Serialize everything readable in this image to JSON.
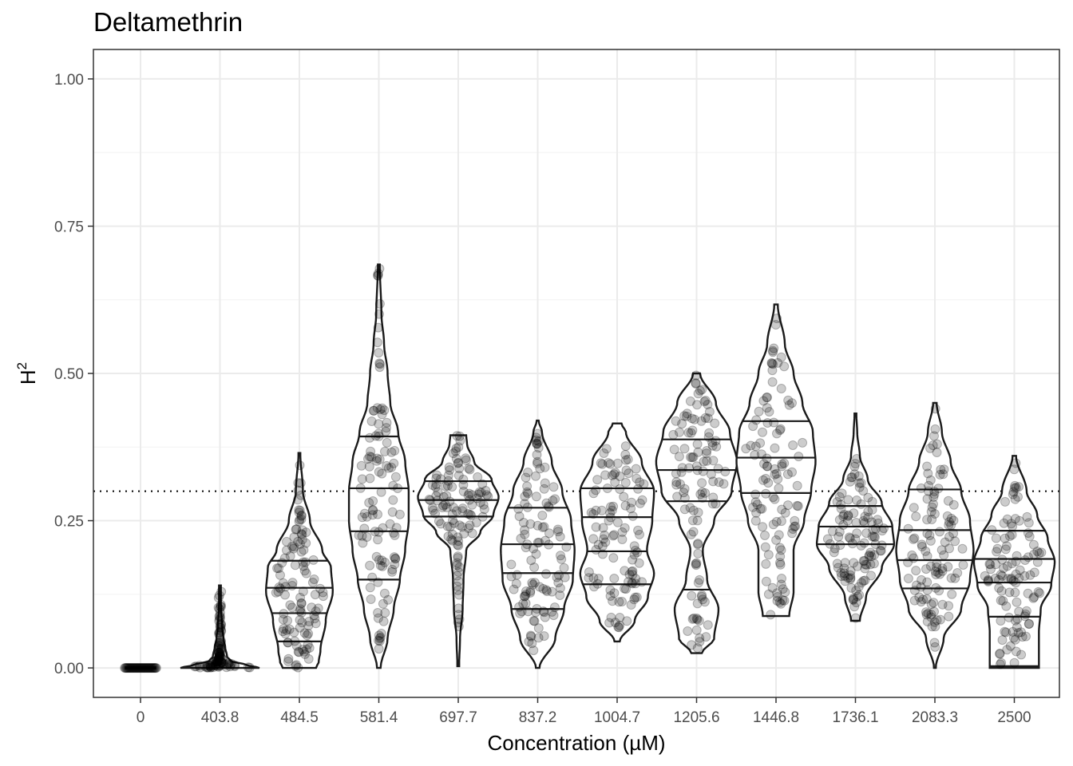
{
  "chart_data": {
    "type": "violin",
    "title": "Deltamethrin",
    "xlabel": "Concentration (µM)",
    "ylabel": "H",
    "ylabel_superscript": "2",
    "ylim": [
      -0.05,
      1.05
    ],
    "yticks": [
      0,
      0.25,
      0.5,
      0.75,
      1.0
    ],
    "ytick_labels": [
      "0.00",
      "0.25",
      "0.50",
      "0.75",
      "1.00"
    ],
    "reference_line": {
      "y": 0.3,
      "style": "dotted"
    },
    "categories": [
      "0",
      "403.8",
      "484.5",
      "581.4",
      "697.7",
      "837.2",
      "1004.7",
      "1205.6",
      "1446.8",
      "1736.1",
      "2083.3",
      "2500"
    ],
    "groups": [
      {
        "concentration": "0",
        "min": 0.0,
        "max": 0.0,
        "quantiles": [],
        "density": [
          [
            0.0,
            0.45
          ]
        ]
      },
      {
        "concentration": "403.8",
        "min": 0.0,
        "max": 0.14,
        "quantiles": [],
        "density": [
          [
            0.0,
            0.45
          ],
          [
            0.005,
            0.3
          ],
          [
            0.012,
            0.12
          ],
          [
            0.02,
            0.08
          ],
          [
            0.035,
            0.06
          ],
          [
            0.05,
            0.04
          ],
          [
            0.07,
            0.025
          ],
          [
            0.1,
            0.012
          ],
          [
            0.14,
            0.005
          ]
        ]
      },
      {
        "concentration": "484.5",
        "min": 0.0,
        "max": 0.365,
        "quantiles": [
          0.045,
          0.093,
          0.136,
          0.182
        ],
        "density": [
          [
            0.0,
            0.19
          ],
          [
            0.01,
            0.22
          ],
          [
            0.03,
            0.24
          ],
          [
            0.08,
            0.3
          ],
          [
            0.13,
            0.38
          ],
          [
            0.17,
            0.36
          ],
          [
            0.2,
            0.26
          ],
          [
            0.25,
            0.12
          ],
          [
            0.3,
            0.04
          ],
          [
            0.365,
            0.01
          ]
        ]
      },
      {
        "concentration": "581.4",
        "min": 0.0,
        "max": 0.685,
        "quantiles": [
          0.15,
          0.232,
          0.305,
          0.393
        ],
        "density": [
          [
            0.0,
            0.02
          ],
          [
            0.05,
            0.1
          ],
          [
            0.1,
            0.17
          ],
          [
            0.15,
            0.24
          ],
          [
            0.2,
            0.3
          ],
          [
            0.25,
            0.34
          ],
          [
            0.3,
            0.34
          ],
          [
            0.35,
            0.3
          ],
          [
            0.4,
            0.22
          ],
          [
            0.45,
            0.13
          ],
          [
            0.5,
            0.1
          ],
          [
            0.55,
            0.06
          ],
          [
            0.6,
            0.03
          ],
          [
            0.685,
            0.01
          ]
        ]
      },
      {
        "concentration": "697.7",
        "min": 0.003,
        "max": 0.395,
        "quantiles": [
          0.257,
          0.285,
          0.317
        ],
        "density": [
          [
            0.003,
            0.01
          ],
          [
            0.05,
            0.02
          ],
          [
            0.1,
            0.05
          ],
          [
            0.15,
            0.06
          ],
          [
            0.2,
            0.09
          ],
          [
            0.23,
            0.25
          ],
          [
            0.26,
            0.4
          ],
          [
            0.29,
            0.46
          ],
          [
            0.32,
            0.38
          ],
          [
            0.35,
            0.18
          ],
          [
            0.38,
            0.1
          ],
          [
            0.395,
            0.09
          ]
        ]
      },
      {
        "concentration": "837.2",
        "min": 0.0,
        "max": 0.42,
        "quantiles": [
          0.1,
          0.161,
          0.21,
          0.272
        ],
        "density": [
          [
            0.0,
            0.02
          ],
          [
            0.05,
            0.2
          ],
          [
            0.1,
            0.3
          ],
          [
            0.15,
            0.4
          ],
          [
            0.2,
            0.42
          ],
          [
            0.25,
            0.38
          ],
          [
            0.3,
            0.28
          ],
          [
            0.35,
            0.16
          ],
          [
            0.4,
            0.05
          ],
          [
            0.42,
            0.01
          ]
        ]
      },
      {
        "concentration": "1004.7",
        "min": 0.045,
        "max": 0.415,
        "quantiles": [
          0.142,
          0.198,
          0.256,
          0.305
        ],
        "density": [
          [
            0.045,
            0.03
          ],
          [
            0.08,
            0.2
          ],
          [
            0.12,
            0.35
          ],
          [
            0.16,
            0.42
          ],
          [
            0.2,
            0.34
          ],
          [
            0.25,
            0.4
          ],
          [
            0.3,
            0.42
          ],
          [
            0.35,
            0.28
          ],
          [
            0.4,
            0.1
          ],
          [
            0.415,
            0.05
          ]
        ]
      },
      {
        "concentration": "1205.6",
        "min": 0.025,
        "max": 0.5,
        "quantiles": [
          0.133,
          0.283,
          0.336,
          0.388
        ],
        "density": [
          [
            0.025,
            0.06
          ],
          [
            0.05,
            0.2
          ],
          [
            0.1,
            0.25
          ],
          [
            0.15,
            0.12
          ],
          [
            0.2,
            0.07
          ],
          [
            0.25,
            0.2
          ],
          [
            0.3,
            0.4
          ],
          [
            0.35,
            0.46
          ],
          [
            0.4,
            0.38
          ],
          [
            0.45,
            0.22
          ],
          [
            0.5,
            0.04
          ]
        ]
      },
      {
        "concentration": "1446.8",
        "min": 0.088,
        "max": 0.617,
        "quantiles": [
          0.297,
          0.357,
          0.419
        ],
        "density": [
          [
            0.088,
            0.15
          ],
          [
            0.13,
            0.2
          ],
          [
            0.2,
            0.2
          ],
          [
            0.25,
            0.32
          ],
          [
            0.3,
            0.4
          ],
          [
            0.35,
            0.45
          ],
          [
            0.4,
            0.42
          ],
          [
            0.45,
            0.3
          ],
          [
            0.5,
            0.2
          ],
          [
            0.55,
            0.1
          ],
          [
            0.617,
            0.02
          ]
        ]
      },
      {
        "concentration": "1736.1",
        "min": 0.08,
        "max": 0.432,
        "quantiles": [
          0.21,
          0.24,
          0.275
        ],
        "density": [
          [
            0.08,
            0.05
          ],
          [
            0.12,
            0.12
          ],
          [
            0.17,
            0.3
          ],
          [
            0.21,
            0.44
          ],
          [
            0.24,
            0.42
          ],
          [
            0.28,
            0.3
          ],
          [
            0.32,
            0.14
          ],
          [
            0.36,
            0.05
          ],
          [
            0.4,
            0.02
          ],
          [
            0.432,
            0.01
          ]
        ]
      },
      {
        "concentration": "2083.3",
        "min": 0.0,
        "max": 0.45,
        "quantiles": [
          0.135,
          0.183,
          0.234,
          0.303
        ],
        "density": [
          [
            0.0,
            0.01
          ],
          [
            0.05,
            0.1
          ],
          [
            0.1,
            0.3
          ],
          [
            0.15,
            0.4
          ],
          [
            0.2,
            0.44
          ],
          [
            0.25,
            0.4
          ],
          [
            0.3,
            0.3
          ],
          [
            0.35,
            0.18
          ],
          [
            0.4,
            0.08
          ],
          [
            0.45,
            0.02
          ]
        ]
      },
      {
        "concentration": "2500",
        "min": 0.0,
        "max": 0.36,
        "quantiles": [
          0.003,
          0.087,
          0.145,
          0.185,
          0.233
        ],
        "density": [
          [
            0.0,
            0.28
          ],
          [
            0.03,
            0.28
          ],
          [
            0.06,
            0.28
          ],
          [
            0.1,
            0.3
          ],
          [
            0.14,
            0.42
          ],
          [
            0.18,
            0.46
          ],
          [
            0.22,
            0.38
          ],
          [
            0.26,
            0.26
          ],
          [
            0.3,
            0.14
          ],
          [
            0.36,
            0.02
          ]
        ]
      }
    ]
  }
}
